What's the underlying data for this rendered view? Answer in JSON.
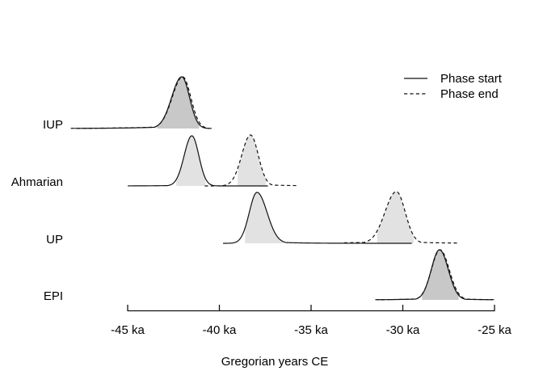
{
  "chart_data": {
    "type": "area",
    "title": "",
    "xlabel": "Gregorian years CE",
    "x_unit": "ka",
    "xlim": [
      -45,
      -25
    ],
    "x_ticks": [
      -45,
      -40,
      -35,
      -30,
      -25
    ],
    "x_tick_labels": [
      "-45 ka",
      "-40 ka",
      "-35 ka",
      "-30 ka",
      "-25 ka"
    ],
    "grid": false,
    "legend": {
      "position": "top-right",
      "entries": [
        {
          "label": "Phase start",
          "line_style": "solid"
        },
        {
          "label": "Phase end",
          "line_style": "dashed"
        }
      ]
    },
    "colors": {
      "curve_stroke": "#111111",
      "fill_rgba": "rgba(0,0,0,0.115)",
      "fill_single": "#e2e2e2",
      "fill_overlap": "#c7c7c7",
      "axis": "#111111",
      "text": "#000000",
      "background": "#ffffff"
    },
    "phases": [
      {
        "label": "IUP",
        "curves": [
          {
            "role": "start",
            "style": "solid",
            "peak_ka": -42.05,
            "sd_left": 0.55,
            "sd_right": 0.42,
            "tail_left": {
              "amp": 0.05,
              "len": 2.0
            },
            "domain": [
              -47.9,
              -40.55
            ],
            "fill_range": [
              -43.4,
              -41.1
            ],
            "peak_h": 64
          },
          {
            "role": "end",
            "style": "dashed",
            "peak_ka": -42.0,
            "sd_left": 0.57,
            "sd_right": 0.44,
            "tail_left": {
              "amp": 0.055,
              "len": 2.2
            },
            "domain": [
              -48.1,
              -40.35
            ],
            "fill_range": [
              -43.4,
              -41.1
            ],
            "peak_h": 64
          }
        ]
      },
      {
        "label": "Ahmarian",
        "curves": [
          {
            "role": "start",
            "style": "solid",
            "peak_ka": -41.5,
            "sd_left": 0.42,
            "sd_right": 0.38,
            "tail_left": {
              "amp": 0.02,
              "len": 1.2
            },
            "domain": [
              -45.0,
              -37.35
            ],
            "fill_range": [
              -42.35,
              -40.75
            ],
            "peak_h": 62
          },
          {
            "role": "end",
            "style": "dashed",
            "peak_ka": -38.3,
            "sd_left": 0.48,
            "sd_right": 0.42,
            "tail_right": {
              "amp": 0.035,
              "len": 1.5
            },
            "domain": [
              -40.8,
              -35.7
            ],
            "fill_range": [
              -39.0,
              -37.45
            ],
            "peak_h": 63
          }
        ]
      },
      {
        "label": "UP",
        "curves": [
          {
            "role": "start",
            "style": "solid",
            "peak_ka": -37.95,
            "sd_left": 0.42,
            "sd_right": 0.55,
            "tail_right": {
              "amp": 0.05,
              "len": 1.3
            },
            "domain": [
              -39.8,
              -29.5
            ],
            "fill_range": [
              -38.6,
              -36.45
            ],
            "peak_h": 63
          },
          {
            "role": "end",
            "style": "dashed",
            "peak_ka": -30.35,
            "sd_left": 0.62,
            "sd_right": 0.48,
            "tail_left": {
              "amp": 0.045,
              "len": 1.8
            },
            "tail_right": {
              "amp": 0.04,
              "len": 1.6
            },
            "domain": [
              -33.2,
              -27.0
            ],
            "fill_range": [
              -31.4,
              -29.4
            ],
            "peak_h": 64
          }
        ]
      },
      {
        "label": "EPI",
        "curves": [
          {
            "role": "start",
            "style": "solid",
            "peak_ka": -28.0,
            "sd_left": 0.45,
            "sd_right": 0.48,
            "tail_left": {
              "amp": 0.04,
              "len": 1.4
            },
            "tail_right": {
              "amp": 0.035,
              "len": 1.3
            },
            "domain": [
              -31.4,
              -25.1
            ],
            "fill_range": [
              -28.95,
              -26.95
            ],
            "peak_h": 62
          },
          {
            "role": "end",
            "style": "dashed",
            "peak_ka": -27.97,
            "sd_left": 0.47,
            "sd_right": 0.5,
            "tail_left": {
              "amp": 0.045,
              "len": 1.5
            },
            "tail_right": {
              "amp": 0.04,
              "len": 1.4
            },
            "domain": [
              -31.5,
              -25.0
            ],
            "fill_range": [
              -28.95,
              -26.95
            ],
            "peak_h": 62
          }
        ]
      }
    ]
  }
}
